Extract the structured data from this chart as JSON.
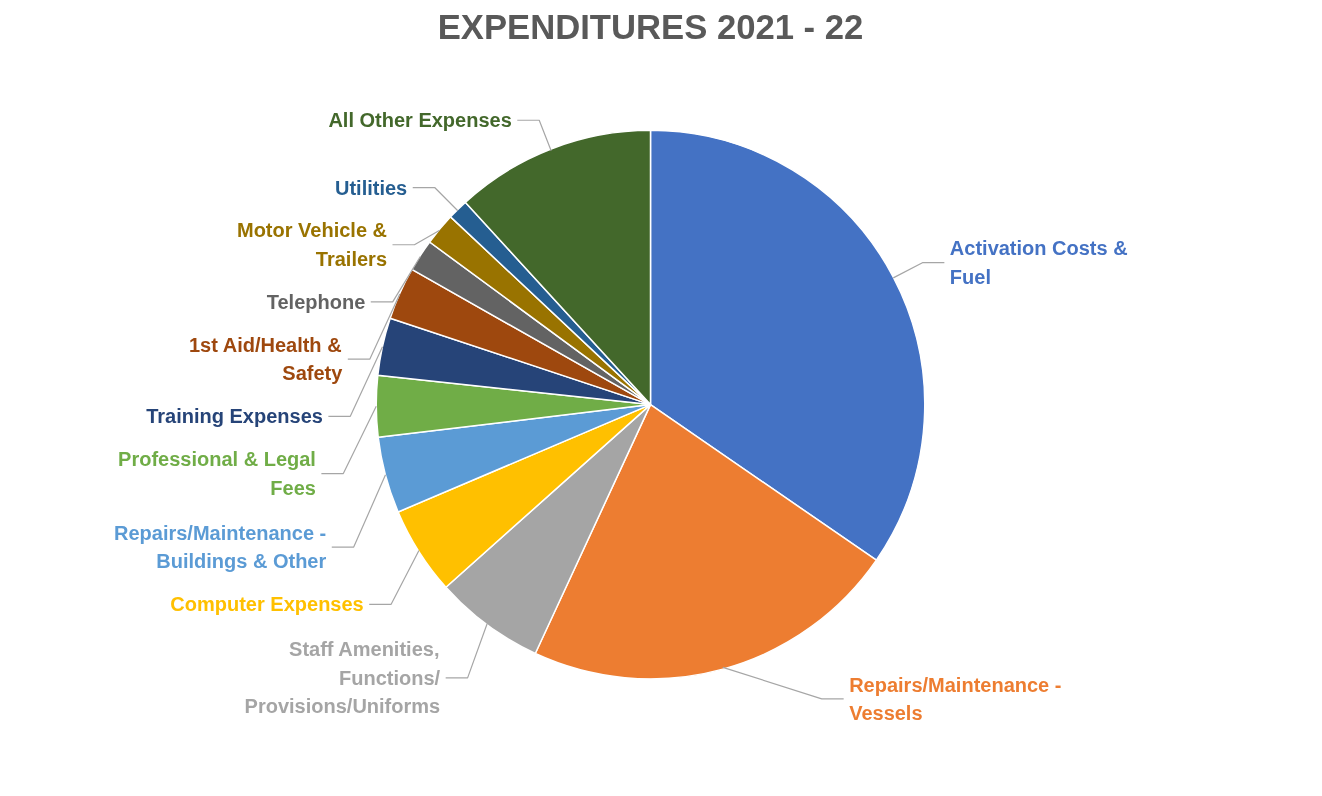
{
  "chart_data": {
    "type": "pie",
    "title": "EXPENDITURES 2021 - 22",
    "categories": [
      "Activation Costs & Fuel",
      "Repairs/Maintenance - Vessels",
      "Staff Amenities, Functions/ Provisions/Uniforms",
      "Computer Expenses",
      "Repairs/Maintenance - Buildings & Other",
      "Professional & Legal Fees",
      "Training Expenses",
      "1st Aid/Health & Safety",
      "Telephone",
      "Motor Vehicle & Trailers",
      "Utilities",
      "All Other Expenses"
    ],
    "values": [
      34.6,
      22.3,
      6.5,
      5.2,
      4.5,
      3.6,
      3.4,
      3.1,
      1.9,
      1.9,
      1.2,
      11.8
    ],
    "colors": [
      "#4472c4",
      "#ed7d31",
      "#a5a5a5",
      "#ffc000",
      "#5b9bd5",
      "#70ad47",
      "#264478",
      "#9e480e",
      "#636363",
      "#997300",
      "#255e91",
      "#43682b"
    ]
  }
}
